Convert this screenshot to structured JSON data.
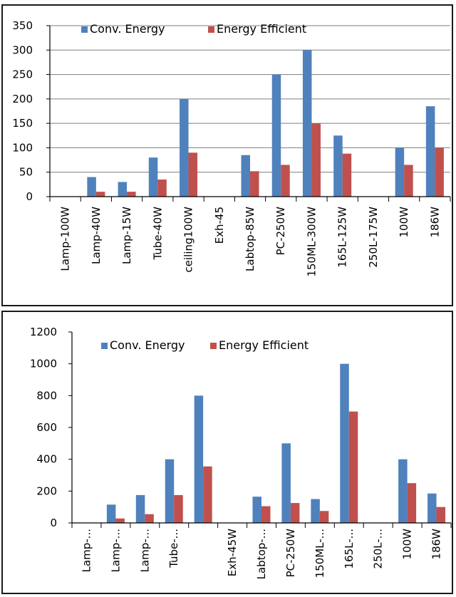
{
  "chart_data": [
    {
      "type": "bar",
      "categories": [
        "Lamp-100W",
        "Lamp-40W",
        "Lamp-15W",
        "Tube-40W",
        "ceiling100W",
        "Exh-45",
        "Labtop-85W",
        "PC-250W",
        "150ML-300W",
        "165L-125W",
        "250L-175W",
        "100W",
        "186W"
      ],
      "series": [
        {
          "name": "Conv. Energy",
          "color": "#4f81bd",
          "values": [
            0,
            40,
            30,
            80,
            200,
            0,
            85,
            250,
            300,
            125,
            0,
            100,
            185
          ]
        },
        {
          "name": "Energy Efficient",
          "color": "#c0504d",
          "values": [
            0,
            10,
            10,
            35,
            90,
            0,
            52,
            65,
            150,
            88,
            0,
            65,
            100
          ]
        }
      ],
      "ylim": [
        0,
        350
      ],
      "yticks": [
        0,
        50,
        100,
        150,
        200,
        250,
        300,
        350
      ],
      "ytick_labels": [
        "0",
        "50",
        "100",
        "150",
        "200",
        "250",
        "300",
        "350"
      ],
      "grid": true,
      "legend": "top-left"
    },
    {
      "type": "bar",
      "categories": [
        "Lamp-...",
        "Lamp-...",
        "Lamp-...",
        "Tube-...",
        "",
        "Exh-45W",
        "Labtop-...",
        "PC-250W",
        "150ML-...",
        "165L-...",
        "250L-...",
        "100W",
        "186W"
      ],
      "series": [
        {
          "name": "Conv. Energy",
          "color": "#4f81bd",
          "values": [
            0,
            115,
            175,
            400,
            800,
            0,
            165,
            500,
            150,
            1000,
            0,
            400,
            185
          ]
        },
        {
          "name": "Energy Efficient",
          "color": "#c0504d",
          "values": [
            0,
            28,
            55,
            175,
            355,
            0,
            105,
            125,
            75,
            700,
            0,
            250,
            100
          ]
        }
      ],
      "ylim": [
        0,
        1200
      ],
      "yticks": [
        0,
        200,
        400,
        600,
        800,
        1000,
        1200
      ],
      "ytick_labels": [
        "0",
        "200",
        "400",
        "600",
        "800",
        "1000",
        "1200"
      ],
      "grid": false,
      "legend": "top-left"
    }
  ]
}
